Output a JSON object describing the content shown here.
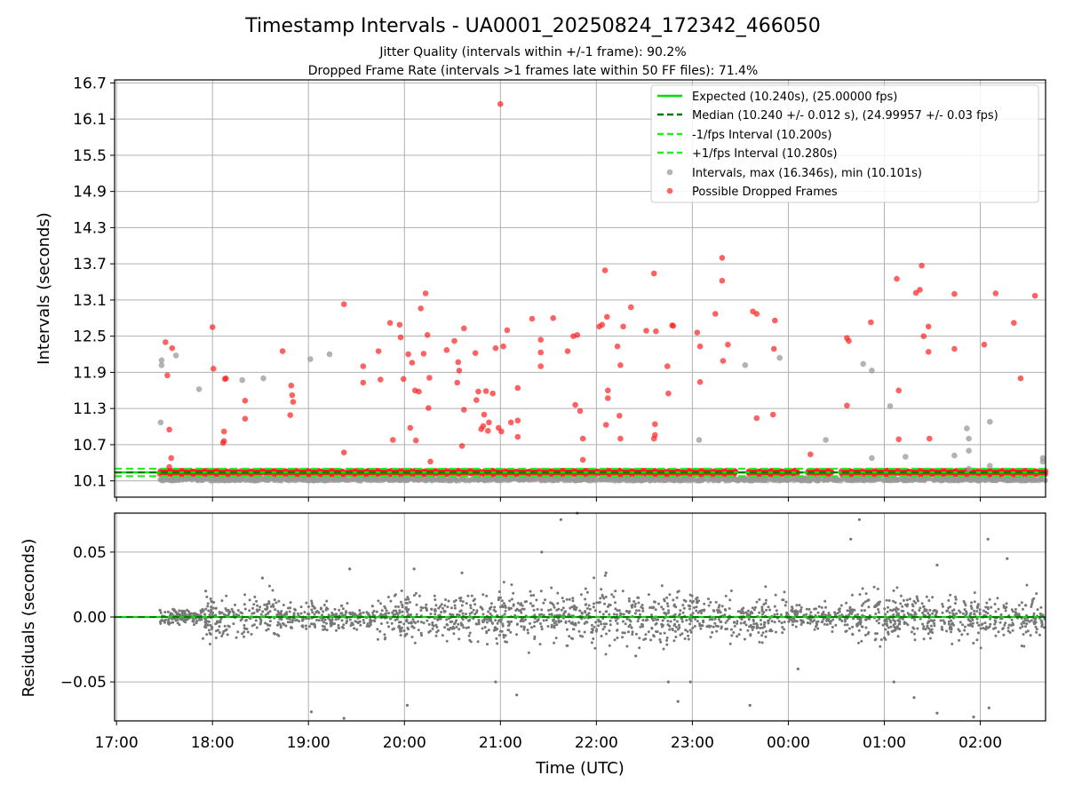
{
  "chart_data": {
    "type": "scatter",
    "title": "Timestamp Intervals - UA0001_20250824_172342_466050",
    "subtitle_lines": [
      "Jitter Quality (intervals within +/-1 frame): 90.2%",
      "Dropped Frame Rate (intervals >1 frames late within 50 FF files): 71.4%"
    ],
    "x_unit": "hours since 17:00 UTC",
    "xlabel": "Time (UTC)",
    "xlim": [
      -0.02,
      9.68
    ],
    "xticks": [
      {
        "value": 0,
        "label": "17:00"
      },
      {
        "value": 1,
        "label": "18:00"
      },
      {
        "value": 2,
        "label": "19:00"
      },
      {
        "value": 3,
        "label": "20:00"
      },
      {
        "value": 4,
        "label": "21:00"
      },
      {
        "value": 5,
        "label": "22:00"
      },
      {
        "value": 6,
        "label": "23:00"
      },
      {
        "value": 7,
        "label": "00:00"
      },
      {
        "value": 8,
        "label": "01:00"
      },
      {
        "value": 9,
        "label": "02:00"
      }
    ],
    "grid": true,
    "intervals_panel": {
      "ylabel": "Intervals (seconds)",
      "ylim": [
        9.83,
        16.75
      ],
      "yticks": [
        10.1,
        10.7,
        11.3,
        11.9,
        12.5,
        13.1,
        13.7,
        14.3,
        14.9,
        15.5,
        16.1,
        16.7
      ],
      "ytick_labels": [
        "10.1",
        "10.7",
        "11.3",
        "11.9",
        "12.5",
        "13.1",
        "13.7",
        "14.3",
        "14.9",
        "15.5",
        "16.1",
        "16.7"
      ],
      "legend_placement": "top-right",
      "lines": [
        {
          "name": "Expected (10.240s), (25.00000 fps)",
          "y": 10.24,
          "color": "#00dd00",
          "style": "solid"
        },
        {
          "name": "Median (10.240 +/- 0.012 s), (24.99957 +/- 0.03 fps)",
          "y": 10.24,
          "color": "#007a00",
          "style": "dashed"
        },
        {
          "name": "-1/fps Interval (10.200s)",
          "y": 10.2,
          "color": "#22ee22",
          "style": "dashed"
        },
        {
          "name": "+1/fps Interval (10.280s)",
          "y": 10.28,
          "color": "#22ee22",
          "style": "dashed"
        }
      ],
      "scatter_legend": [
        {
          "name": "Intervals, max (16.346s), min (10.101s)",
          "color": "#999999"
        },
        {
          "name": "Possible Dropped Frames",
          "color": "#ff3333"
        }
      ],
      "x_range": [
        0.45,
        9.68
      ],
      "dense_band": {
        "base_y": 10.24,
        "dropped_y_range": [
          10.21,
          10.27
        ],
        "normal_y_range": [
          10.1,
          10.15
        ]
      },
      "dropped_frames": [
        [
          0.51,
          12.4
        ],
        [
          0.53,
          11.85
        ],
        [
          0.55,
          10.95
        ],
        [
          0.57,
          10.48
        ],
        [
          0.58,
          12.3
        ],
        [
          0.55,
          10.33
        ],
        [
          1.0,
          12.65
        ],
        [
          1.01,
          11.96
        ],
        [
          1.13,
          11.79
        ],
        [
          1.14,
          11.8
        ],
        [
          1.12,
          10.92
        ],
        [
          1.12,
          10.76
        ],
        [
          1.11,
          10.73
        ],
        [
          1.34,
          11.43
        ],
        [
          1.34,
          11.13
        ],
        [
          1.73,
          12.25
        ],
        [
          1.82,
          11.68
        ],
        [
          1.83,
          11.52
        ],
        [
          1.84,
          11.41
        ],
        [
          1.81,
          11.19
        ],
        [
          2.37,
          13.03
        ],
        [
          2.37,
          10.57
        ],
        [
          2.57,
          12.0
        ],
        [
          2.57,
          11.73
        ],
        [
          2.73,
          12.25
        ],
        [
          2.75,
          11.78
        ],
        [
          2.85,
          12.72
        ],
        [
          2.88,
          10.78
        ],
        [
          2.95,
          12.69
        ],
        [
          2.96,
          12.48
        ],
        [
          2.99,
          11.79
        ],
        [
          3.04,
          12.2
        ],
        [
          3.08,
          12.06
        ],
        [
          3.11,
          11.6
        ],
        [
          3.06,
          10.98
        ],
        [
          3.12,
          10.77
        ],
        [
          3.15,
          11.58
        ],
        [
          3.17,
          12.96
        ],
        [
          3.2,
          12.21
        ],
        [
          3.22,
          13.21
        ],
        [
          3.24,
          12.52
        ],
        [
          3.26,
          11.81
        ],
        [
          3.25,
          11.31
        ],
        [
          3.27,
          10.42
        ],
        [
          3.44,
          12.27
        ],
        [
          3.52,
          12.42
        ],
        [
          3.56,
          12.07
        ],
        [
          3.55,
          11.73
        ],
        [
          3.57,
          11.93
        ],
        [
          3.6,
          10.68
        ],
        [
          3.62,
          12.63
        ],
        [
          3.62,
          11.28
        ],
        [
          3.74,
          12.22
        ],
        [
          3.77,
          11.58
        ],
        [
          3.75,
          11.44
        ],
        [
          3.8,
          10.96
        ],
        [
          3.83,
          11.2
        ],
        [
          3.82,
          11.01
        ],
        [
          3.85,
          11.59
        ],
        [
          3.88,
          11.07
        ],
        [
          3.87,
          10.93
        ],
        [
          3.92,
          11.55
        ],
        [
          3.95,
          12.3
        ],
        [
          3.98,
          10.98
        ],
        [
          4.03,
          12.33
        ],
        [
          4.01,
          10.92
        ],
        [
          4.07,
          12.6
        ],
        [
          4.11,
          11.07
        ],
        [
          4.18,
          11.64
        ],
        [
          4.18,
          11.1
        ],
        [
          4.18,
          10.83
        ],
        [
          4.33,
          12.79
        ],
        [
          4.42,
          12.44
        ],
        [
          4.42,
          12.23
        ],
        [
          4.42,
          12.0
        ],
        [
          4.55,
          12.8
        ],
        [
          4.7,
          12.25
        ],
        [
          4.76,
          12.5
        ],
        [
          4.8,
          12.52
        ],
        [
          4.83,
          11.26
        ],
        [
          4.78,
          11.36
        ],
        [
          4.86,
          10.8
        ],
        [
          4.86,
          10.45
        ],
        [
          5.03,
          12.66
        ],
        [
          5.06,
          12.69
        ],
        [
          5.09,
          13.59
        ],
        [
          5.11,
          12.82
        ],
        [
          5.12,
          11.6
        ],
        [
          5.12,
          11.47
        ],
        [
          5.1,
          11.03
        ],
        [
          5.22,
          12.33
        ],
        [
          5.24,
          11.18
        ],
        [
          5.25,
          12.02
        ],
        [
          5.28,
          12.66
        ],
        [
          5.25,
          10.8
        ],
        [
          5.36,
          12.98
        ],
        [
          5.52,
          12.59
        ],
        [
          5.6,
          13.54
        ],
        [
          5.62,
          12.58
        ],
        [
          5.61,
          11.04
        ],
        [
          5.61,
          10.86
        ],
        [
          5.6,
          10.8
        ],
        [
          5.74,
          12.0
        ],
        [
          5.75,
          11.55
        ],
        [
          5.79,
          12.68
        ],
        [
          5.8,
          12.67
        ],
        [
          6.05,
          12.56
        ],
        [
          6.08,
          12.33
        ],
        [
          6.08,
          11.74
        ],
        [
          6.24,
          12.87
        ],
        [
          6.31,
          13.8
        ],
        [
          6.31,
          13.42
        ],
        [
          6.32,
          12.09
        ],
        [
          6.37,
          12.36
        ],
        [
          6.63,
          12.91
        ],
        [
          6.67,
          12.87
        ],
        [
          6.67,
          11.14
        ],
        [
          6.85,
          12.29
        ],
        [
          6.86,
          12.76
        ],
        [
          6.84,
          11.2
        ],
        [
          7.23,
          10.54
        ],
        [
          7.61,
          12.47
        ],
        [
          7.63,
          12.42
        ],
        [
          7.61,
          11.35
        ],
        [
          7.86,
          12.73
        ],
        [
          8.13,
          13.45
        ],
        [
          8.15,
          11.6
        ],
        [
          8.15,
          10.79
        ],
        [
          8.33,
          13.22
        ],
        [
          8.37,
          13.27
        ],
        [
          8.39,
          13.67
        ],
        [
          8.41,
          12.5
        ],
        [
          8.46,
          12.24
        ],
        [
          8.46,
          12.66
        ],
        [
          8.47,
          10.8
        ],
        [
          8.73,
          13.2
        ],
        [
          8.73,
          12.29
        ],
        [
          9.04,
          12.36
        ],
        [
          9.16,
          13.21
        ],
        [
          9.35,
          12.72
        ],
        [
          9.42,
          11.8
        ],
        [
          9.57,
          13.17
        ],
        [
          4.0,
          16.35
        ]
      ],
      "normal_outliers": [
        [
          0.47,
          12.02
        ],
        [
          0.47,
          12.1
        ],
        [
          0.46,
          11.07
        ],
        [
          0.62,
          12.18
        ],
        [
          0.86,
          11.62
        ],
        [
          1.31,
          11.77
        ],
        [
          1.53,
          11.8
        ],
        [
          2.02,
          12.12
        ],
        [
          2.22,
          12.2
        ],
        [
          6.07,
          10.78
        ],
        [
          6.55,
          12.02
        ],
        [
          6.91,
          12.14
        ],
        [
          7.39,
          10.78
        ],
        [
          7.78,
          12.04
        ],
        [
          7.87,
          11.93
        ],
        [
          7.87,
          10.48
        ],
        [
          8.06,
          11.34
        ],
        [
          8.22,
          10.5
        ],
        [
          8.73,
          10.52
        ],
        [
          8.86,
          10.97
        ],
        [
          8.88,
          10.8
        ],
        [
          8.88,
          10.6
        ],
        [
          8.88,
          10.3
        ],
        [
          9.1,
          11.08
        ],
        [
          9.1,
          10.35
        ],
        [
          9.65,
          10.48
        ],
        [
          9.65,
          10.42
        ]
      ]
    },
    "residuals_panel": {
      "ylabel": "Residuals (seconds)",
      "ylim": [
        -0.08,
        0.08
      ],
      "yticks": [
        -0.05,
        0.0,
        0.05
      ],
      "ytick_labels": [
        "−0.05",
        "0.00",
        "0.05"
      ],
      "zero_line": {
        "y": 0.0,
        "color": "#00dd00",
        "median_color": "#007a00"
      },
      "point_color": "#777777",
      "x_range": [
        0.45,
        9.68
      ],
      "notable_points": [
        [
          0.93,
          0.02
        ],
        [
          1.52,
          0.03
        ],
        [
          2.43,
          0.037
        ],
        [
          3.1,
          0.037
        ],
        [
          3.6,
          0.034
        ],
        [
          4.43,
          0.05
        ],
        [
          5.1,
          0.034
        ],
        [
          7.65,
          0.06
        ],
        [
          8.55,
          0.04
        ],
        [
          9.28,
          0.045
        ],
        [
          2.03,
          -0.073
        ],
        [
          2.37,
          -0.078
        ],
        [
          3.03,
          -0.068
        ],
        [
          3.95,
          -0.05
        ],
        [
          4.17,
          -0.06
        ],
        [
          5.41,
          -0.03
        ],
        [
          5.75,
          -0.05
        ],
        [
          5.85,
          -0.065
        ],
        [
          6.6,
          -0.068
        ],
        [
          7.1,
          -0.04
        ],
        [
          8.1,
          -0.05
        ],
        [
          8.31,
          -0.062
        ],
        [
          8.55,
          -0.074
        ],
        [
          8.93,
          -0.077
        ],
        [
          9.09,
          -0.07
        ],
        [
          9.08,
          0.06
        ],
        [
          7.74,
          0.075
        ],
        [
          4.63,
          0.075
        ],
        [
          4.8,
          0.08
        ],
        [
          5.98,
          -0.05
        ]
      ]
    }
  }
}
